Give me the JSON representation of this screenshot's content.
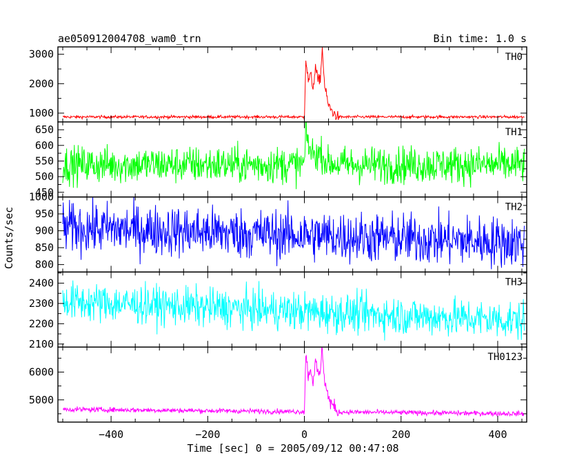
{
  "header": {
    "title": "ae050912004708_wam0_trn",
    "bin_time": "Bin time: 1.0 s"
  },
  "chart_data": {
    "type": "line",
    "title": "ae050912004708_wam0_trn",
    "subtitle": "Bin time: 1.0 s",
    "xlabel": "Time [sec] 0 = 2005/09/12 00:47:08",
    "ylabel": "Counts/sec",
    "xlim": [
      -510,
      460
    ],
    "x_range": [
      -500,
      455
    ],
    "x_ticks": [
      -400,
      -200,
      0,
      200,
      400
    ],
    "x_tick_labels": [
      "−400",
      "−200",
      "0",
      "200",
      "400"
    ],
    "panels": [
      {
        "name": "TH0",
        "color": "#ff0000",
        "ylim": [
          700,
          3250
        ],
        "y_ticks": [
          1000,
          2000,
          3000
        ],
        "y_tick_labels": [
          "1000",
          "2000",
          "3000"
        ],
        "baseline_start": 870,
        "baseline_end": 870,
        "noise": 25,
        "burst": [
          {
            "x": 0,
            "y": 900
          },
          {
            "x": 3,
            "y": 2850
          },
          {
            "x": 8,
            "y": 2100
          },
          {
            "x": 13,
            "y": 2300
          },
          {
            "x": 18,
            "y": 1850
          },
          {
            "x": 23,
            "y": 2550
          },
          {
            "x": 28,
            "y": 2100
          },
          {
            "x": 33,
            "y": 2200
          },
          {
            "x": 37,
            "y": 3200
          },
          {
            "x": 42,
            "y": 1900
          },
          {
            "x": 50,
            "y": 1250
          },
          {
            "x": 60,
            "y": 1000
          },
          {
            "x": 70,
            "y": 870
          }
        ],
        "burst_noise": 90
      },
      {
        "name": "TH1",
        "color": "#00ff00",
        "ylim": [
          435,
          675
        ],
        "y_ticks": [
          450,
          500,
          550,
          600,
          650
        ],
        "y_tick_labels": [
          "450",
          "500",
          "550",
          "600",
          "650"
        ],
        "baseline_start": 538,
        "baseline_end": 538,
        "noise": 30,
        "burst": [
          {
            "x": 0,
            "y": 540
          },
          {
            "x": 3,
            "y": 650
          },
          {
            "x": 10,
            "y": 590
          },
          {
            "x": 20,
            "y": 570
          },
          {
            "x": 35,
            "y": 575
          },
          {
            "x": 45,
            "y": 545
          },
          {
            "x": 70,
            "y": 538
          }
        ],
        "burst_noise": 25
      },
      {
        "name": "TH2",
        "color": "#0000ff",
        "ylim": [
          778,
          1000
        ],
        "y_ticks": [
          800,
          850,
          900,
          950,
          1000
        ],
        "y_tick_labels": [
          "800",
          "850",
          "900",
          "950",
          "1000"
        ],
        "baseline_start": 910,
        "baseline_end": 865,
        "noise": 38
      },
      {
        "name": "TH3",
        "color": "#00ffff",
        "ylim": [
          2085,
          2455
        ],
        "y_ticks": [
          2100,
          2200,
          2300,
          2400
        ],
        "y_tick_labels": [
          "2100",
          "2200",
          "2300",
          "2400"
        ],
        "baseline_start": 2310,
        "baseline_end": 2215,
        "noise": 48
      },
      {
        "name": "TH0123",
        "color": "#ff00ff",
        "ylim": [
          4200,
          6900
        ],
        "y_ticks": [
          5000,
          6000
        ],
        "y_tick_labels": [
          "5000",
          "6000"
        ],
        "baseline_start": 4660,
        "baseline_end": 4500,
        "noise": 45,
        "burst": [
          {
            "x": 0,
            "y": 4600
          },
          {
            "x": 3,
            "y": 6650
          },
          {
            "x": 8,
            "y": 5900
          },
          {
            "x": 13,
            "y": 6100
          },
          {
            "x": 18,
            "y": 5700
          },
          {
            "x": 23,
            "y": 6350
          },
          {
            "x": 28,
            "y": 5900
          },
          {
            "x": 33,
            "y": 6000
          },
          {
            "x": 37,
            "y": 6850
          },
          {
            "x": 42,
            "y": 5700
          },
          {
            "x": 50,
            "y": 5050
          },
          {
            "x": 60,
            "y": 4750
          },
          {
            "x": 70,
            "y": 4550
          }
        ],
        "burst_noise": 140
      }
    ],
    "grid": false,
    "legend": "none"
  }
}
